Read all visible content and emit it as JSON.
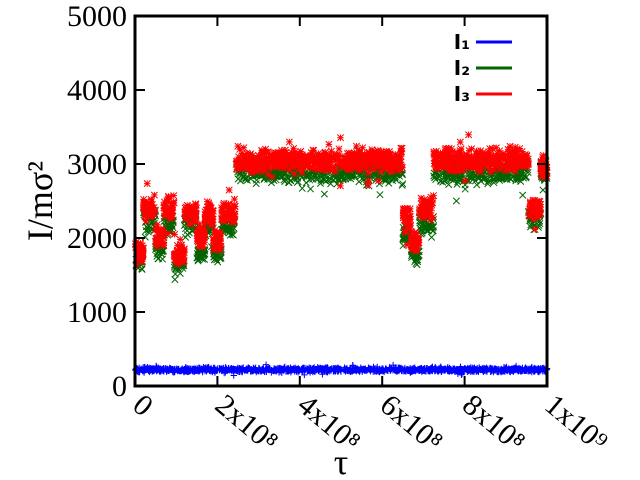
{
  "chart_data": {
    "type": "scatter",
    "xlabel": "τ",
    "ylabel": "I/mσ²",
    "xlim": [
      0,
      1000000000
    ],
    "ylim": [
      0,
      5000
    ],
    "x_ticks": [
      {
        "value": 0,
        "label": "0"
      },
      {
        "value": 200000000,
        "label": "2x10⁸"
      },
      {
        "value": 400000000,
        "label": "4x10⁸"
      },
      {
        "value": 600000000,
        "label": "6x10⁸"
      },
      {
        "value": 800000000,
        "label": "8x10⁸"
      },
      {
        "value": 1000000000,
        "label": "1x10⁹"
      }
    ],
    "y_ticks": [
      {
        "value": 0,
        "label": "0"
      },
      {
        "value": 1000,
        "label": "1000"
      },
      {
        "value": 2000,
        "label": "2000"
      },
      {
        "value": 3000,
        "label": "3000"
      },
      {
        "value": 4000,
        "label": "4000"
      },
      {
        "value": 5000,
        "label": "5000"
      }
    ],
    "legend_position": "top-right",
    "grid": false,
    "series": [
      {
        "name": "I₁",
        "color": "#0000ff",
        "marker": "plus",
        "segments": [
          {
            "x": [
              0,
              1000000000
            ],
            "center": 220,
            "spread": 45
          }
        ]
      },
      {
        "name": "I₂",
        "color": "#006400",
        "marker": "cross",
        "segments": [
          {
            "x": [
              0,
              20000000
            ],
            "center": 1700,
            "spread": 200
          },
          {
            "x": [
              20000000,
              50000000
            ],
            "center": 2250,
            "spread": 220
          },
          {
            "x": [
              50000000,
              70000000
            ],
            "center": 1850,
            "spread": 200
          },
          {
            "x": [
              70000000,
              95000000
            ],
            "center": 2200,
            "spread": 220
          },
          {
            "x": [
              95000000,
              120000000
            ],
            "center": 1650,
            "spread": 200
          },
          {
            "x": [
              120000000,
              150000000
            ],
            "center": 2200,
            "spread": 220
          },
          {
            "x": [
              150000000,
              170000000
            ],
            "center": 1800,
            "spread": 200
          },
          {
            "x": [
              170000000,
              190000000
            ],
            "center": 2150,
            "spread": 220
          },
          {
            "x": [
              190000000,
              210000000
            ],
            "center": 1800,
            "spread": 200
          },
          {
            "x": [
              210000000,
              245000000
            ],
            "center": 2150,
            "spread": 220
          },
          {
            "x": [
              245000000,
              650000000
            ],
            "center": 2900,
            "spread": 230
          },
          {
            "x": [
              650000000,
              670000000
            ],
            "center": 2050,
            "spread": 220
          },
          {
            "x": [
              670000000,
              690000000
            ],
            "center": 1800,
            "spread": 180
          },
          {
            "x": [
              690000000,
              725000000
            ],
            "center": 2200,
            "spread": 220
          },
          {
            "x": [
              725000000,
              955000000
            ],
            "center": 2900,
            "spread": 230
          },
          {
            "x": [
              955000000,
              985000000
            ],
            "center": 2250,
            "spread": 220
          },
          {
            "x": [
              985000000,
              1000000000
            ],
            "center": 2850,
            "spread": 220
          }
        ]
      },
      {
        "name": "I₃",
        "color": "#ff0000",
        "marker": "star",
        "segments": [
          {
            "x": [
              0,
              20000000
            ],
            "center": 1800,
            "spread": 220
          },
          {
            "x": [
              20000000,
              50000000
            ],
            "center": 2400,
            "spread": 220
          },
          {
            "x": [
              50000000,
              70000000
            ],
            "center": 2000,
            "spread": 220
          },
          {
            "x": [
              70000000,
              95000000
            ],
            "center": 2400,
            "spread": 220
          },
          {
            "x": [
              95000000,
              120000000
            ],
            "center": 1800,
            "spread": 220
          },
          {
            "x": [
              120000000,
              150000000
            ],
            "center": 2350,
            "spread": 220
          },
          {
            "x": [
              150000000,
              170000000
            ],
            "center": 2000,
            "spread": 220
          },
          {
            "x": [
              170000000,
              190000000
            ],
            "center": 2350,
            "spread": 220
          },
          {
            "x": [
              190000000,
              210000000
            ],
            "center": 1950,
            "spread": 220
          },
          {
            "x": [
              210000000,
              245000000
            ],
            "center": 2350,
            "spread": 220
          },
          {
            "x": [
              245000000,
              650000000
            ],
            "center": 3050,
            "spread": 220
          },
          {
            "x": [
              650000000,
              670000000
            ],
            "center": 2250,
            "spread": 230
          },
          {
            "x": [
              670000000,
              690000000
            ],
            "center": 1950,
            "spread": 200
          },
          {
            "x": [
              690000000,
              725000000
            ],
            "center": 2400,
            "spread": 220
          },
          {
            "x": [
              725000000,
              955000000
            ],
            "center": 3050,
            "spread": 220
          },
          {
            "x": [
              955000000,
              985000000
            ],
            "center": 2400,
            "spread": 230
          },
          {
            "x": [
              985000000,
              1000000000
            ],
            "center": 2950,
            "spread": 220
          }
        ]
      }
    ]
  }
}
